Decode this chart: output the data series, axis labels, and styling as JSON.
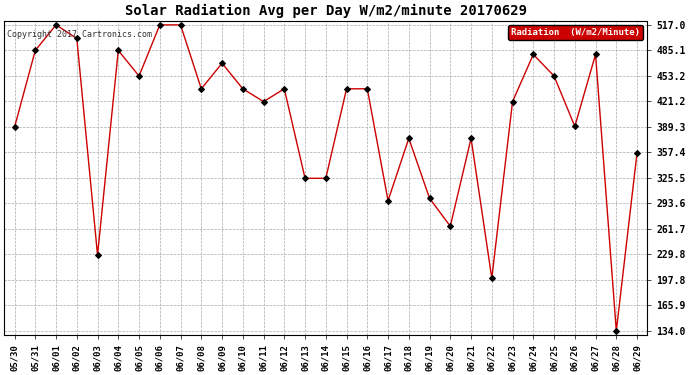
{
  "title": "Solar Radiation Avg per Day W/m2/minute 20170629",
  "copyright": "Copyright 2017 Cartronics.com",
  "legend_label": "Radiation  (W/m2/Minute)",
  "dates": [
    "05/30",
    "05/31",
    "06/01",
    "06/02",
    "06/03",
    "06/04",
    "06/05",
    "06/06",
    "06/07",
    "06/08",
    "06/09",
    "06/10",
    "06/11",
    "06/12",
    "06/13",
    "06/14",
    "06/15",
    "06/16",
    "06/17",
    "06/18",
    "06/19",
    "06/20",
    "06/21",
    "06/22",
    "06/23",
    "06/24",
    "06/25",
    "06/26",
    "06/27",
    "06/28",
    "06/29"
  ],
  "values": [
    389,
    485,
    517,
    500,
    229,
    485,
    453,
    517,
    517,
    437,
    469,
    437,
    421,
    437,
    325,
    325,
    437,
    437,
    297,
    375,
    300,
    265,
    375,
    200,
    421,
    480,
    453,
    390,
    480,
    134,
    357
  ],
  "ymin": 134.0,
  "ymax": 517.0,
  "yticks": [
    134.0,
    165.9,
    197.8,
    229.8,
    261.7,
    293.6,
    325.5,
    357.4,
    389.3,
    421.2,
    453.2,
    485.1,
    517.0
  ],
  "line_color": "#cc0000",
  "marker_color": "#000000",
  "bg_color": "#ffffff",
  "grid_color": "#aaaaaa",
  "title_fontsize": 10,
  "legend_bg": "#cc0000",
  "legend_text_color": "#ffffff"
}
